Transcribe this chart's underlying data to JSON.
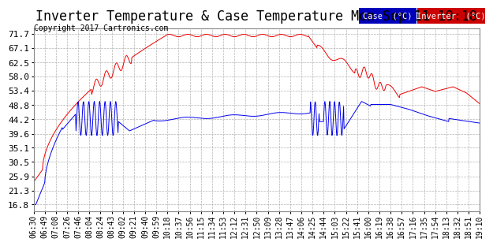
{
  "title": "Inverter Temperature & Case Temperature Mon Sep 11 19:18",
  "copyright": "Copyright 2017 Cartronics.com",
  "yticks": [
    16.8,
    21.3,
    25.9,
    30.5,
    35.1,
    39.6,
    44.2,
    48.8,
    53.4,
    58.0,
    62.5,
    67.1,
    71.7
  ],
  "ymin": 14.5,
  "ymax": 73.5,
  "case_color": "#0000ee",
  "inverter_color": "#ee0000",
  "legend_case_bg": "#0000cc",
  "legend_inverter_bg": "#cc0000",
  "background_color": "#ffffff",
  "grid_color": "#aaaaaa",
  "title_fontsize": 13,
  "tick_fontsize": 8,
  "xtick_labels": [
    "06:30",
    "06:49",
    "07:08",
    "07:26",
    "07:46",
    "08:04",
    "08:24",
    "08:43",
    "09:02",
    "09:21",
    "09:40",
    "09:59",
    "10:18",
    "10:37",
    "10:56",
    "11:15",
    "11:34",
    "11:53",
    "12:12",
    "12:31",
    "12:50",
    "13:09",
    "13:28",
    "13:47",
    "14:06",
    "14:25",
    "14:44",
    "15:03",
    "15:22",
    "15:41",
    "16:00",
    "16:19",
    "16:38",
    "16:57",
    "17:16",
    "17:35",
    "17:54",
    "18:13",
    "18:32",
    "18:51",
    "19:10"
  ]
}
